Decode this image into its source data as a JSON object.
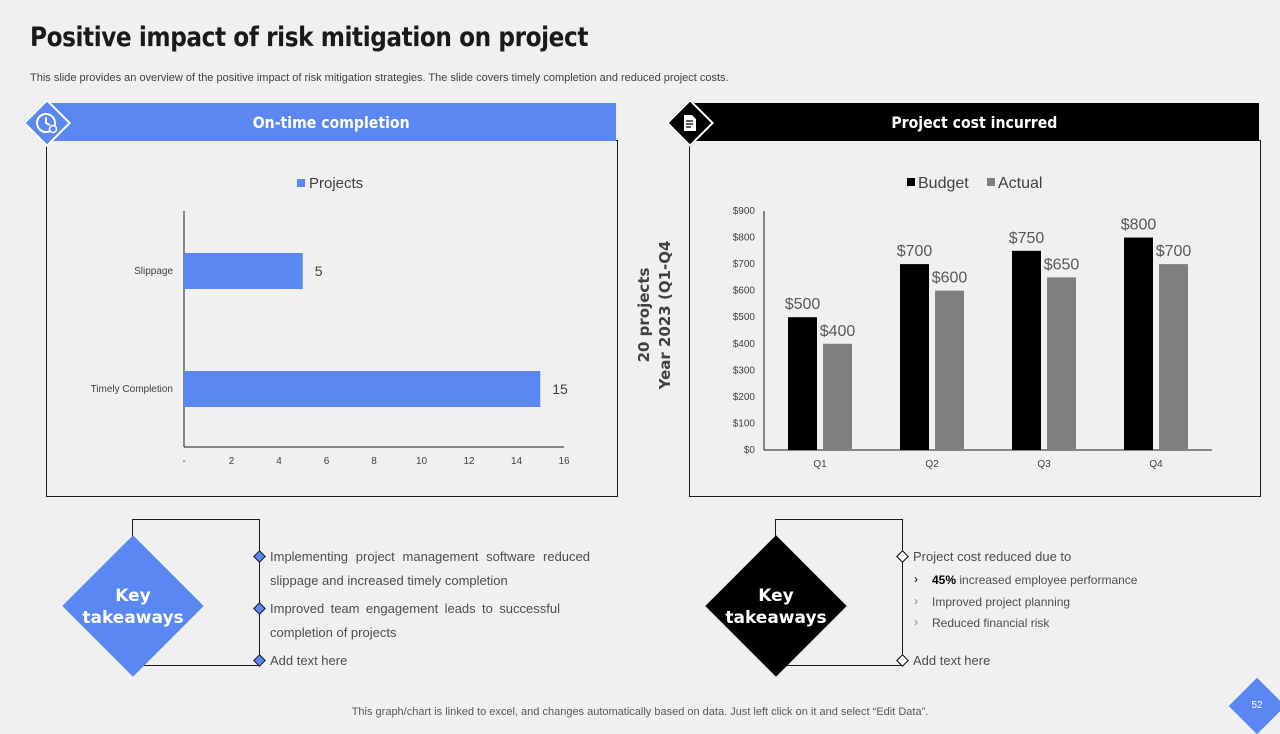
{
  "title": "Positive impact of risk mitigation on project",
  "subtitle": "This slide provides an overview of the positive impact of risk mitigation strategies. The slide covers timely completion and reduced project costs.",
  "left_panel": {
    "header": "On-time completion",
    "icon": "clock-gear-icon",
    "color": "#5b87f2"
  },
  "right_panel": {
    "header": "Project cost incurred",
    "icon": "document-icon",
    "color": "#000000",
    "side_label_1": "20 projects",
    "side_label_2": "Year 2023 (Q1-Q4"
  },
  "chart_data": [
    {
      "type": "bar",
      "orientation": "horizontal",
      "categories": [
        "Slippage",
        "Timely Completion"
      ],
      "series": [
        {
          "name": "Projects",
          "values": [
            5,
            15
          ],
          "color": "#5b87f2"
        }
      ],
      "xlim": [
        0,
        16
      ],
      "xticks": [
        "-",
        "2",
        "4",
        "6",
        "8",
        "10",
        "12",
        "14",
        "16"
      ],
      "legend": "top",
      "grid": false
    },
    {
      "type": "bar",
      "categories": [
        "Q1",
        "Q2",
        "Q3",
        "Q4"
      ],
      "series": [
        {
          "name": "Budget",
          "values": [
            500,
            700,
            750,
            800
          ],
          "labels": [
            "$500",
            "$700",
            "$750",
            "$800"
          ],
          "color": "#000000"
        },
        {
          "name": "Actual",
          "values": [
            400,
            600,
            650,
            700
          ],
          "labels": [
            "$400",
            "$600",
            "$650",
            "$700"
          ],
          "color": "#7f7f7f"
        }
      ],
      "ylim": [
        0,
        900
      ],
      "yticks": [
        "$0",
        "$100",
        "$200",
        "$300",
        "$400",
        "$500",
        "$600",
        "$700",
        "$800",
        "$900"
      ],
      "legend": "top",
      "grid": false
    }
  ],
  "left_takeaways": {
    "label_line1": "Key",
    "label_line2": "takeaways",
    "bullets": [
      {
        "line1": "Implementing project management software reduced",
        "line2": "slippage and increased timely completion"
      },
      {
        "line1": "Improved  team engagement leads to successful",
        "line2": "completion of projects"
      },
      {
        "line1": "Add text here",
        "line2": ""
      }
    ]
  },
  "right_takeaways": {
    "label_line1": "Key",
    "label_line2": "takeaways",
    "intro": "Project cost reduced due to",
    "subs": [
      {
        "bold": "45%",
        "text": " increased employee performance"
      },
      {
        "bold": "",
        "text": "Improved project planning"
      },
      {
        "bold": "",
        "text": "Reduced financial risk"
      }
    ],
    "last": "Add text here"
  },
  "footer": "This graph/chart is linked to excel,  and changes automatically based on data. Just left click on it and select “Edit Data”.",
  "page_number": "52"
}
